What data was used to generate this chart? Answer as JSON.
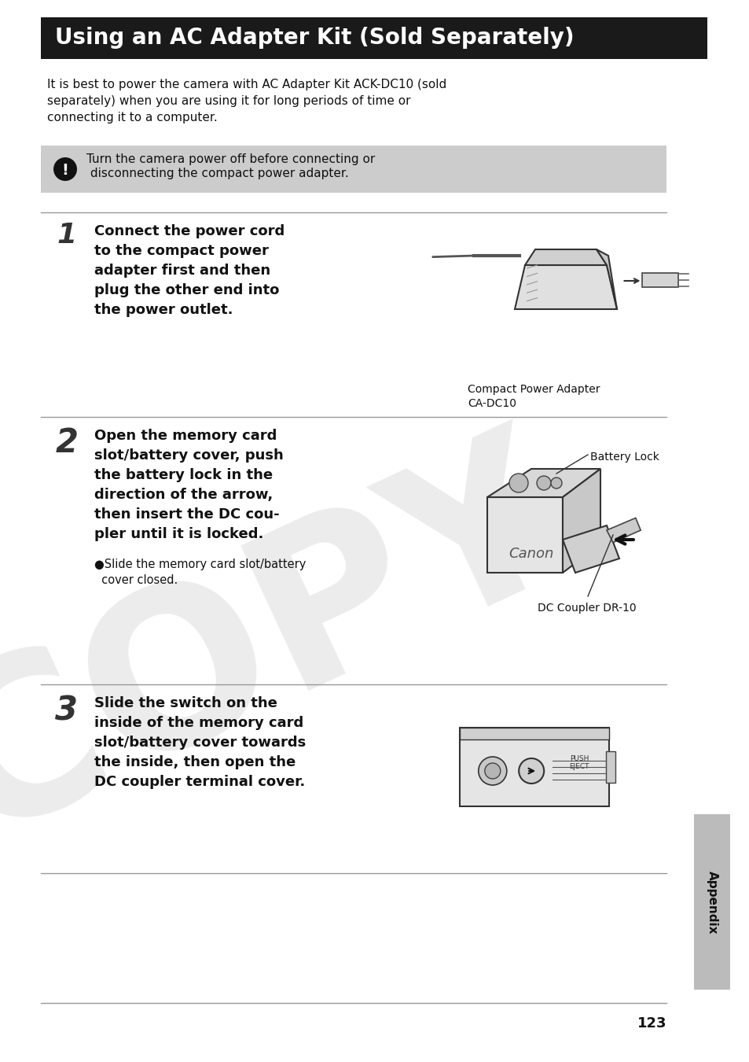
{
  "title": "Using an AC Adapter Kit (Sold Separately)",
  "title_bg": "#1a1a1a",
  "title_color": "#ffffff",
  "page_bg": "#ffffff",
  "intro_text": "It is best to power the camera with AC Adapter Kit ACK-DC10 (sold\nseparately) when you are using it for long periods of time or\nconnecting it to a computer.",
  "warning_bg": "#cccccc",
  "warning_text_1": "Turn the camera power off before connecting or",
  "warning_text_2": " disconnecting the compact power adapter.",
  "step1_num": "1",
  "step1_text": "Connect the power cord\nto the compact power\nadapter first and then\nplug the other end into\nthe power outlet.",
  "step1_caption": "Compact Power Adapter\nCA-DC10",
  "step2_num": "2",
  "step2_text": "Open the memory card\nslot/battery cover, push\nthe battery lock in the\ndirection of the arrow,\nthen insert the DC cou-\npler until it is locked.",
  "step2_bullet": "●Slide the memory card slot/battery\n  cover closed.",
  "step2_label": "Battery Lock",
  "step2_caption": "DC Coupler DR-10",
  "step3_num": "3",
  "step3_text": "Slide the switch on the\ninside of the memory card\nslot/battery cover towards\nthe inside, then open the\nDC coupler terminal cover.",
  "sidebar_text": "Appendix",
  "page_number": "123",
  "copy_watermark": "COPY",
  "line_color": "#999999",
  "text_color": "#111111"
}
